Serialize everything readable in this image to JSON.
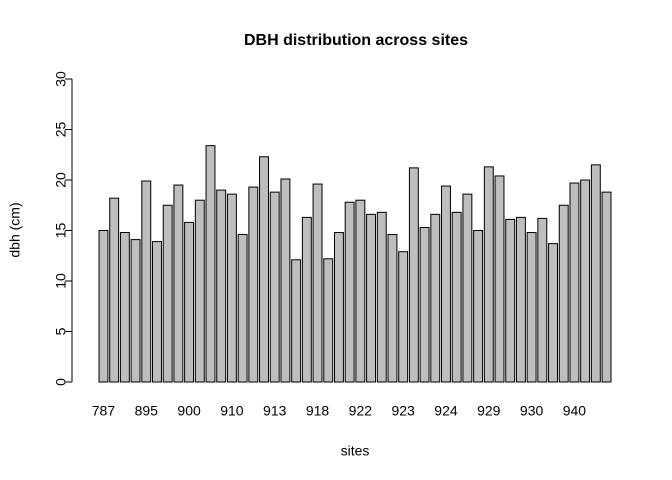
{
  "chart_data": {
    "type": "bar",
    "title": "DBH distribution across sites",
    "xlabel": "sites",
    "ylabel": "dbh (cm)",
    "categories": [
      "787",
      null,
      null,
      null,
      "895",
      null,
      null,
      null,
      "900",
      null,
      null,
      null,
      "910",
      null,
      null,
      null,
      "913",
      null,
      null,
      null,
      "918",
      null,
      null,
      null,
      "922",
      null,
      null,
      null,
      "923",
      null,
      null,
      null,
      "924",
      null,
      null,
      null,
      "929",
      null,
      null,
      null,
      "930",
      null,
      null,
      null,
      "940",
      null,
      null,
      null
    ],
    "values": [
      15.0,
      18.2,
      14.8,
      14.1,
      19.9,
      13.9,
      17.5,
      19.5,
      15.8,
      18.0,
      23.4,
      19.0,
      18.6,
      14.6,
      19.3,
      22.3,
      18.8,
      20.1,
      12.1,
      16.3,
      19.6,
      12.2,
      14.8,
      17.8,
      18.0,
      16.6,
      16.8,
      14.6,
      12.9,
      21.2,
      15.3,
      16.6,
      19.4,
      16.8,
      18.6,
      15.0,
      21.3,
      20.4,
      16.1,
      16.3,
      14.8,
      16.2,
      13.7,
      17.5,
      19.7,
      20.0,
      21.5,
      18.8
    ],
    "color": "#bebebe",
    "ylim": [
      0,
      30
    ],
    "yticks": [
      0,
      5,
      10,
      15,
      20,
      25,
      30
    ],
    "grid": false
  }
}
